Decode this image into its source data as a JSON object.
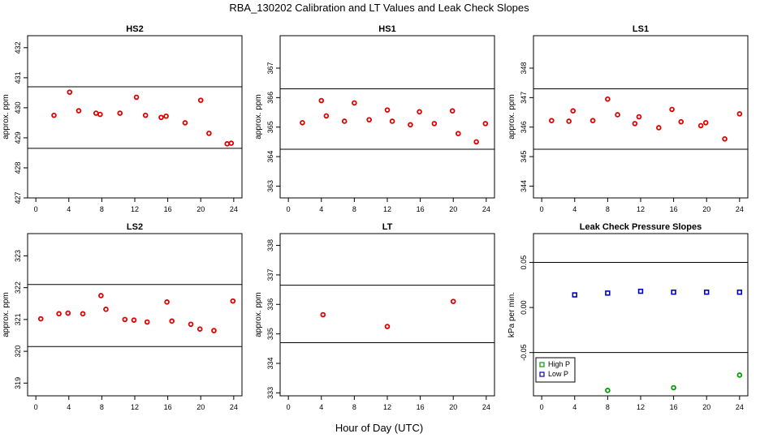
{
  "figure": {
    "title": "RBA_130202  Calibration and LT Values and Leak Check Slopes",
    "xlabel": "Hour of Day (UTC)"
  },
  "colors": {
    "point_red": "#e00000",
    "high_p": "#00a000",
    "low_p": "#0000c0",
    "axis": "#000000"
  },
  "chart_data": [
    {
      "type": "scatter",
      "title": "HS2",
      "ylabel": "approx. ppm",
      "xlim": [
        -1,
        25
      ],
      "ylim": [
        427,
        432.4
      ],
      "xticks": [
        "0",
        "4",
        "8",
        "12",
        "16",
        "20",
        "24"
      ],
      "yticks": [
        "427",
        "428",
        "429",
        "430",
        "431",
        "432"
      ],
      "hlines": [
        430.7,
        428.65
      ],
      "series": [
        {
          "x": [
            2.2,
            4.1,
            5.2,
            7.3,
            7.8,
            10.2,
            12.2,
            13.3,
            15.2,
            15.8,
            18.1,
            20.0,
            21.0,
            23.2,
            23.7
          ],
          "y": [
            429.75,
            430.52,
            429.9,
            429.82,
            429.78,
            429.82,
            430.35,
            429.75,
            429.68,
            429.72,
            429.5,
            430.25,
            429.15,
            428.8,
            428.82
          ]
        }
      ]
    },
    {
      "type": "scatter",
      "title": "HS1",
      "ylabel": "approx. ppm",
      "xlim": [
        -1,
        25
      ],
      "ylim": [
        362.6,
        368.1
      ],
      "xticks": [
        "0",
        "4",
        "8",
        "12",
        "16",
        "20",
        "24"
      ],
      "yticks": [
        "363",
        "364",
        "365",
        "366",
        "367"
      ],
      "hlines": [
        366.3,
        364.25
      ],
      "series": [
        {
          "x": [
            1.7,
            4.0,
            4.6,
            6.8,
            8.0,
            9.8,
            12.0,
            12.6,
            14.8,
            15.9,
            17.7,
            19.9,
            20.6,
            22.8,
            23.9
          ],
          "y": [
            365.15,
            365.9,
            365.38,
            365.2,
            365.82,
            365.25,
            365.58,
            365.2,
            365.08,
            365.52,
            365.12,
            365.55,
            364.78,
            364.5,
            365.12
          ]
        }
      ]
    },
    {
      "type": "scatter",
      "title": "LS1",
      "ylabel": "approx. ppm",
      "xlim": [
        -1,
        25
      ],
      "ylim": [
        343.6,
        349.1
      ],
      "xticks": [
        "0",
        "4",
        "8",
        "12",
        "16",
        "20",
        "24"
      ],
      "yticks": [
        "344",
        "345",
        "346",
        "347",
        "348"
      ],
      "hlines": [
        347.3,
        345.25
      ],
      "series": [
        {
          "x": [
            1.2,
            3.3,
            3.8,
            6.2,
            8.0,
            9.2,
            11.3,
            11.8,
            14.2,
            15.8,
            16.9,
            19.3,
            19.9,
            22.2,
            24.0
          ],
          "y": [
            346.22,
            346.2,
            346.55,
            346.22,
            346.95,
            346.42,
            346.12,
            346.35,
            345.98,
            346.6,
            346.18,
            346.05,
            346.15,
            345.6,
            346.45
          ]
        }
      ]
    },
    {
      "type": "scatter",
      "title": "LS2",
      "ylabel": "approx. ppm",
      "xlim": [
        -1,
        25
      ],
      "ylim": [
        318.6,
        323.7
      ],
      "xticks": [
        "0",
        "4",
        "8",
        "12",
        "16",
        "20",
        "24"
      ],
      "yticks": [
        "319",
        "320",
        "321",
        "322",
        "323"
      ],
      "hlines": [
        322.1,
        320.15
      ],
      "series": [
        {
          "x": [
            0.6,
            2.8,
            3.9,
            5.7,
            7.9,
            8.5,
            10.8,
            11.9,
            13.5,
            15.9,
            16.5,
            18.8,
            19.9,
            21.6,
            23.9
          ],
          "y": [
            321.02,
            321.18,
            321.2,
            321.18,
            321.75,
            321.32,
            321.0,
            320.98,
            320.92,
            321.55,
            320.95,
            320.85,
            320.7,
            320.65,
            321.58
          ]
        }
      ]
    },
    {
      "type": "scatter",
      "title": "LT",
      "ylabel": "approx. ppm",
      "xlim": [
        -1,
        25
      ],
      "ylim": [
        332.9,
        338.4
      ],
      "xticks": [
        "0",
        "4",
        "8",
        "12",
        "16",
        "20",
        "24"
      ],
      "yticks": [
        "333",
        "334",
        "335",
        "336",
        "337",
        "338"
      ],
      "hlines": [
        336.65,
        334.7
      ],
      "series": [
        {
          "x": [
            4.2,
            12.0,
            20.0
          ],
          "y": [
            335.65,
            335.25,
            336.1
          ]
        }
      ]
    },
    {
      "type": "scatter",
      "title": "Leak Check Pressure Slopes",
      "ylabel": "kPa per min.",
      "xlim": [
        -1,
        25
      ],
      "ylim": [
        -0.098,
        0.082
      ],
      "xticks": [
        "0",
        "4",
        "8",
        "12",
        "16",
        "20",
        "24"
      ],
      "yticks": [
        "-0.05",
        "0.00",
        "0.05"
      ],
      "hlines": [
        0.05,
        -0.05
      ],
      "legend": {
        "position": "bottom-left",
        "entries": [
          "High P",
          "Low P"
        ]
      },
      "series": [
        {
          "name": "High P",
          "x": [
            8.0,
            16.0,
            24.0
          ],
          "y": [
            -0.092,
            -0.089,
            -0.075
          ]
        },
        {
          "name": "Low P",
          "x": [
            4.0,
            8.0,
            12.0,
            16.0,
            20.0,
            24.0
          ],
          "y": [
            0.014,
            0.016,
            0.018,
            0.017,
            0.017,
            0.017
          ]
        }
      ]
    }
  ]
}
